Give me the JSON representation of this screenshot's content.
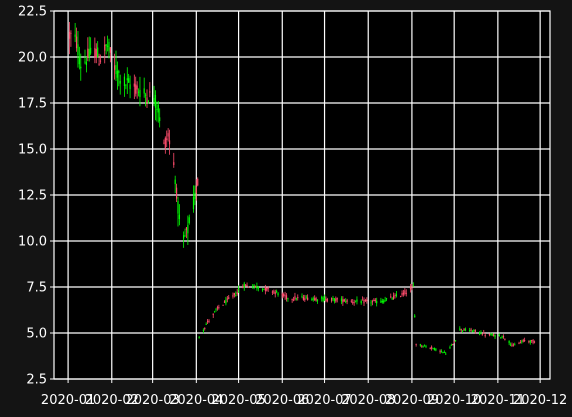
{
  "chart_data": {
    "type": "candlestick",
    "title": "",
    "xlabel": "",
    "ylabel": "",
    "ylim": [
      2.5,
      22.5
    ],
    "y_ticks": [
      "2.5",
      "5.0",
      "7.5",
      "10.0",
      "12.5",
      "15.0",
      "17.5",
      "20.0",
      "22.5"
    ],
    "x_ticks": [
      "2020-01",
      "2020-02",
      "2020-03",
      "2020-04",
      "2020-05",
      "2020-06",
      "2020-07",
      "2020-08",
      "2020-09",
      "2020-10",
      "2020-11",
      "2020-12"
    ],
    "xlim": [
      "2019-12-22",
      "2020-12-08"
    ],
    "grid": true,
    "colors": {
      "background": "#000000",
      "figure": "#141414",
      "grid": "#ffffff",
      "up": "#00ff00",
      "down": "#ff4d6d",
      "text": "#ffffff"
    },
    "trend_points": [
      [
        "2020-01-02",
        21.2
      ],
      [
        "2020-01-07",
        20.8
      ],
      [
        "2020-01-10",
        19.6
      ],
      [
        "2020-01-14",
        19.9
      ],
      [
        "2020-01-20",
        20.4
      ],
      [
        "2020-01-23",
        19.9
      ],
      [
        "2020-01-29",
        20.6
      ],
      [
        "2020-02-03",
        19.4
      ],
      [
        "2020-02-10",
        18.6
      ],
      [
        "2020-02-17",
        18.4
      ],
      [
        "2020-02-24",
        18.0
      ],
      [
        "2020-03-02",
        17.8
      ],
      [
        "2020-03-05",
        17.2
      ],
      [
        "2020-03-09",
        15.2
      ],
      [
        "2020-03-12",
        15.8
      ],
      [
        "2020-03-16",
        14.2
      ],
      [
        "2020-03-18",
        12.6
      ],
      [
        "2020-03-20",
        11.0
      ],
      [
        "2020-03-23",
        10.0
      ],
      [
        "2020-03-26",
        10.6
      ],
      [
        "2020-03-30",
        12.0
      ],
      [
        "2020-04-02",
        13.2
      ],
      [
        "2020-04-03",
        4.8
      ],
      [
        "2020-04-09",
        5.6
      ],
      [
        "2020-04-17",
        6.4
      ],
      [
        "2020-04-27",
        7.0
      ],
      [
        "2020-05-05",
        7.6
      ],
      [
        "2020-05-15",
        7.5
      ],
      [
        "2020-05-25",
        7.3
      ],
      [
        "2020-06-05",
        6.9
      ],
      [
        "2020-06-20",
        6.9
      ],
      [
        "2020-07-10",
        6.8
      ],
      [
        "2020-07-25",
        6.7
      ],
      [
        "2020-08-10",
        6.7
      ],
      [
        "2020-08-25",
        7.1
      ],
      [
        "2020-09-02",
        7.5
      ],
      [
        "2020-09-04",
        4.4
      ],
      [
        "2020-09-15",
        4.2
      ],
      [
        "2020-09-25",
        3.9
      ],
      [
        "2020-10-01",
        4.5
      ],
      [
        "2020-10-05",
        5.2
      ],
      [
        "2020-10-15",
        5.1
      ],
      [
        "2020-10-25",
        4.9
      ],
      [
        "2020-11-05",
        4.8
      ],
      [
        "2020-11-12",
        4.3
      ],
      [
        "2020-11-20",
        4.6
      ],
      [
        "2020-11-29",
        4.5
      ]
    ]
  }
}
